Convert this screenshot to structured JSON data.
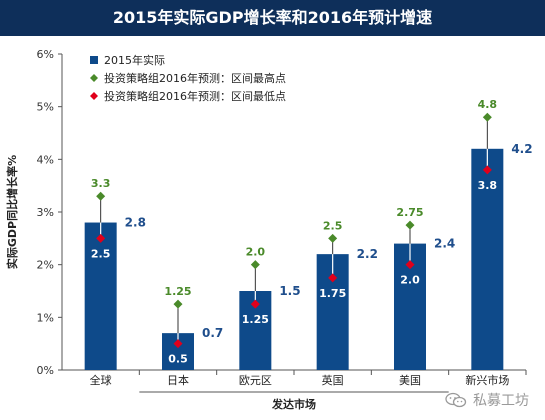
{
  "title": "2015年实际GDP增长率和2016年预计增速",
  "chart_data": {
    "type": "bar",
    "categories": [
      "全球",
      "日本",
      "欧元区",
      "英国",
      "美国",
      "新兴市场"
    ],
    "xlabel": "发达市场",
    "ylabel": "实际GDP同比增长率%",
    "ylim": [
      0,
      6
    ],
    "yticks": [
      "0%",
      "1%",
      "2%",
      "3%",
      "4%",
      "5%",
      "6%"
    ],
    "series": [
      {
        "name": "2015年实际",
        "values": [
          2.8,
          0.7,
          1.5,
          2.2,
          2.4,
          4.2
        ],
        "labels": [
          "2.8",
          "0.7",
          "1.5",
          "2.2",
          "2.4",
          "4.2"
        ]
      },
      {
        "name": "投资策略组2016年预测：区间最高点",
        "values": [
          3.3,
          1.25,
          2.0,
          2.5,
          2.75,
          4.8
        ],
        "labels": [
          "3.3",
          "1.25",
          "2.0",
          "2.5",
          "2.75",
          "4.8"
        ]
      },
      {
        "name": "投资策略组2016年预测：区间最低点",
        "values": [
          2.5,
          0.5,
          1.25,
          1.75,
          2.0,
          3.8
        ],
        "labels": [
          "2.5",
          "0.5",
          "1.25",
          "1.75",
          "2.0",
          "3.8"
        ]
      }
    ],
    "colors": {
      "bar": "#0e4a8a",
      "high": "#4a8a2a",
      "low": "#e0001b",
      "barlabel": "#1f4e8c",
      "highlabel": "#4a8a2a",
      "title_bg": "#0e2f5a"
    },
    "legend_position": "top-left",
    "grid": false
  },
  "watermark": {
    "text": "私募工坊",
    "icon": "wechat-icon"
  }
}
